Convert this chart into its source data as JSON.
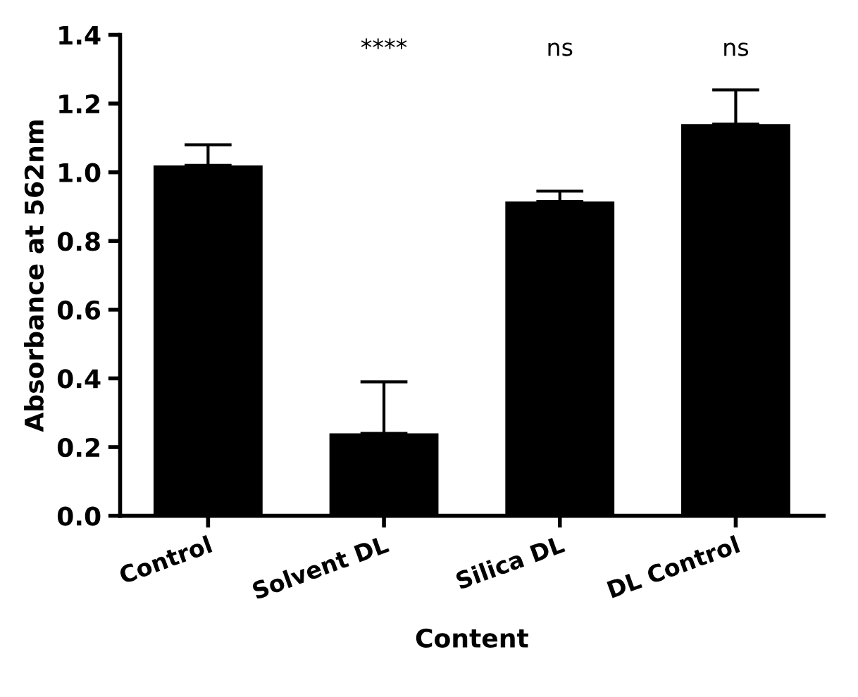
{
  "chart_data": {
    "type": "bar",
    "xlabel": "Content",
    "ylabel": "Absorbance at 562nm",
    "categories": [
      "Control",
      "Solvent DL",
      "Silica DL",
      "DL Control"
    ],
    "values": [
      1.02,
      0.24,
      0.915,
      1.14
    ],
    "errors": [
      [
        1.02,
        1.08
      ],
      [
        0.24,
        0.39
      ],
      [
        0.915,
        0.945
      ],
      [
        1.14,
        1.24
      ]
    ],
    "color": "#000000",
    "ylim": [
      0,
      1.4
    ],
    "yticks": [
      {
        "value": 0,
        "label": "0.0"
      },
      0.2,
      0.4,
      0.6,
      0.8,
      {
        "value": 1,
        "label": "1.0"
      },
      1.2,
      1.4
    ],
    "grid": false,
    "annotations": [
      "****",
      "ns",
      "ns"
    ]
  }
}
